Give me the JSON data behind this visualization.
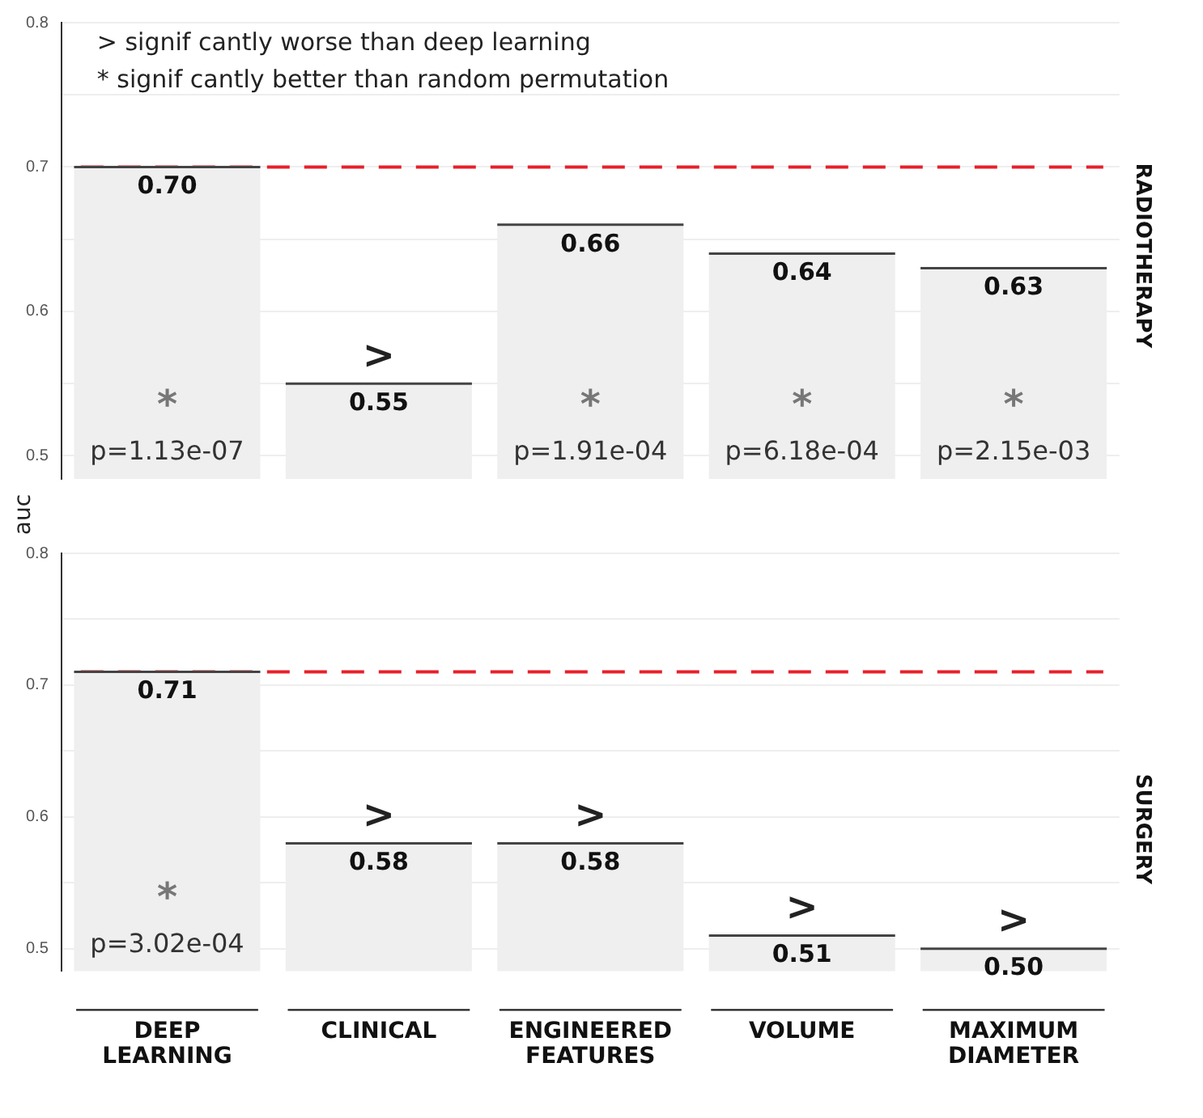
{
  "chart_data": [
    {
      "type": "bar",
      "title": "RADIOTHERAPY",
      "ylabel": "auc",
      "categories": [
        "DEEP LEARNING",
        "CLINICAL",
        "ENGINEERED FEATURES",
        "VOLUME",
        "MAXIMUM DIAMETER"
      ],
      "values": [
        0.7,
        0.55,
        0.66,
        0.64,
        0.63
      ],
      "color": "#efefef",
      "value_labels": [
        "0.70",
        "0.55",
        "0.66",
        "0.64",
        "0.63"
      ],
      "ylim": [
        0.484,
        0.8
      ],
      "yticks": [
        0.5,
        {
          "value": 0.55,
          "label": null
        },
        0.6,
        {
          "value": 0.65,
          "label": null
        },
        0.7,
        {
          "value": 0.75,
          "label": null
        },
        0.8
      ],
      "grid": "y",
      "tick_labels": "y",
      "ref_lines": [
        {
          "axis": "y",
          "value": 0.7,
          "color": "#e8202a",
          "line_style": "dashed"
        }
      ],
      "annotations": [
        "> signif cantly worse than deep learning",
        "* signif cantly better than random permutation",
        "*",
        "p=1.13e-07",
        "*",
        "p=1.91e-04",
        "*",
        "p=6.18e-04",
        "*",
        "p=2.15e-03",
        {
          "text": ">",
          "x": "CLINICAL",
          "y": 0.55
        }
      ]
    },
    {
      "type": "bar",
      "title": "SURGERY",
      "categories": [
        "DEEP LEARNING",
        "CLINICAL",
        "ENGINEERED FEATURES",
        "VOLUME",
        "MAXIMUM DIAMETER"
      ],
      "values": [
        0.71,
        0.58,
        0.58,
        0.51,
        0.5
      ],
      "color": "#efefef",
      "value_labels": [
        "0.71",
        "0.58",
        "0.58",
        "0.51",
        "0.50"
      ],
      "ylim": [
        0.483,
        0.8
      ],
      "yticks": [
        0.5,
        {
          "value": 0.55,
          "label": null
        },
        0.6,
        {
          "value": 0.65,
          "label": null
        },
        0.7,
        {
          "value": 0.75,
          "label": null
        },
        0.8
      ],
      "grid": "y",
      "ref_lines": [
        {
          "axis": "y",
          "value": 0.71,
          "color": "#e8202a",
          "line_style": "dashed"
        }
      ],
      "annotations": [
        "*",
        "p=3.02e-04",
        {
          "text": ">",
          "x": "CLINICAL",
          "y": 0.58
        },
        {
          "text": ">",
          "x": "ENGINEERED FEATURES",
          "y": 0.58
        },
        {
          "text": ">",
          "x": "VOLUME",
          "y": 0.51
        },
        {
          "text": ">",
          "x": "MAXIMUM DIAMETER",
          "y": 0.5
        }
      ]
    }
  ]
}
